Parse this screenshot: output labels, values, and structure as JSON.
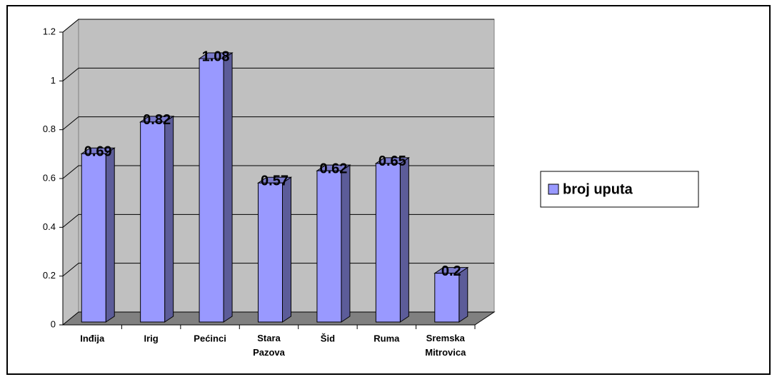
{
  "chart_data": {
    "type": "bar",
    "categories": [
      "Inđija",
      "Irig",
      "Pećinci",
      "Stara Pazova",
      "Šid",
      "Ruma",
      "Sremska Mitrovica"
    ],
    "series": [
      {
        "name": "broj uputa",
        "color": "#9999ff",
        "values": [
          0.69,
          0.82,
          1.08,
          0.57,
          0.62,
          0.65,
          0.2
        ]
      }
    ],
    "ylim": [
      0,
      1.2
    ],
    "yticks": [
      0,
      0.2,
      0.4,
      0.6,
      0.8,
      1,
      1.2
    ],
    "grid": true,
    "legend": "right"
  }
}
